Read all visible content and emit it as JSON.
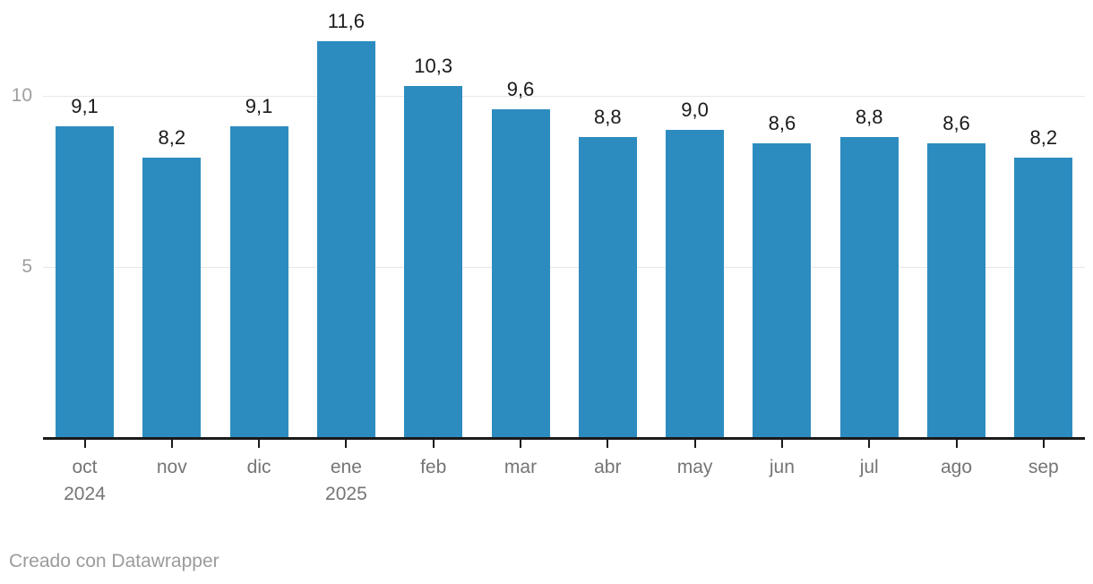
{
  "chart_data": {
    "type": "bar",
    "categories": [
      "oct",
      "nov",
      "dic",
      "ene",
      "feb",
      "mar",
      "abr",
      "may",
      "jun",
      "jul",
      "ago",
      "sep"
    ],
    "category_sublabels": [
      "2024",
      "",
      "",
      "2025",
      "",
      "",
      "",
      "",
      "",
      "",
      "",
      ""
    ],
    "values": [
      9.1,
      8.2,
      9.1,
      11.6,
      10.3,
      9.6,
      8.8,
      9.0,
      8.6,
      8.8,
      8.6,
      8.2
    ],
    "value_labels": [
      "9,1",
      "8,2",
      "9,1",
      "11,6",
      "10,3",
      "9,6",
      "8,8",
      "9,0",
      "8,6",
      "8,8",
      "8,6",
      "8,2"
    ],
    "y_ticks": [
      5,
      10
    ],
    "ylim": [
      0,
      12.5
    ],
    "title": "",
    "xlabel": "",
    "ylabel": "",
    "grid": true,
    "legend_position": "none",
    "colors": {
      "bar": "#2d8cbf",
      "gridline": "#e8e8e8",
      "axis": "#1a1a1a",
      "y_tick_label": "#9e9e9e",
      "x_tick_label": "#757575",
      "value_label": "#1a1a1a"
    }
  },
  "footer": {
    "credit": "Creado con Datawrapper"
  }
}
